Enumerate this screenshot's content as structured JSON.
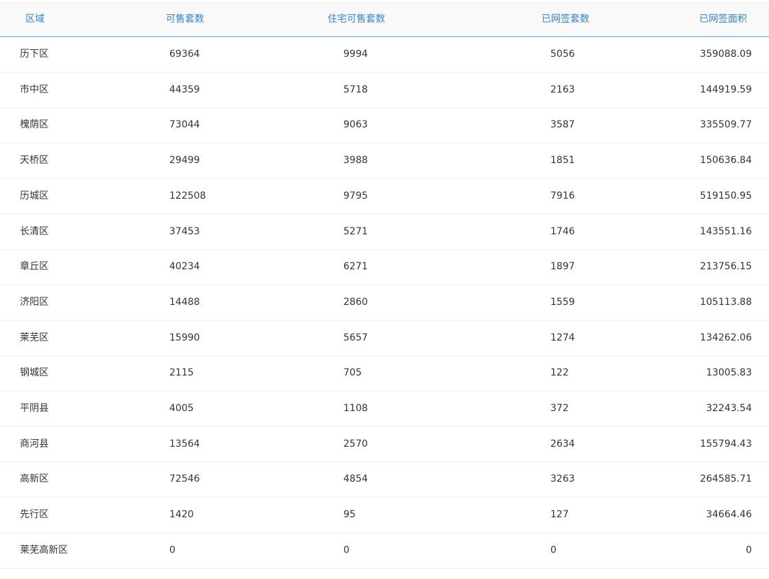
{
  "colors": {
    "header_text": "#2f86d6",
    "header_border": "#5aa6e6",
    "header_bg": "#f9f9fa"
  },
  "table": {
    "columns": [
      "区域",
      "可售套数",
      "住宅可售套数",
      "已网签套数",
      "已网签面积"
    ],
    "rows": [
      [
        "历下区",
        "69364",
        "9994",
        "5056",
        "359088.09"
      ],
      [
        "市中区",
        "44359",
        "5718",
        "2163",
        "144919.59"
      ],
      [
        "槐荫区",
        "73044",
        "9063",
        "3587",
        "335509.77"
      ],
      [
        "天桥区",
        "29499",
        "3988",
        "1851",
        "150636.84"
      ],
      [
        "历城区",
        "122508",
        "9795",
        "7916",
        "519150.95"
      ],
      [
        "长清区",
        "37453",
        "5271",
        "1746",
        "143551.16"
      ],
      [
        "章丘区",
        "40234",
        "6271",
        "1897",
        "213756.15"
      ],
      [
        "济阳区",
        "14488",
        "2860",
        "1559",
        "105113.88"
      ],
      [
        "莱芜区",
        "15990",
        "5657",
        "1274",
        "134262.06"
      ],
      [
        "钢城区",
        "2115",
        "705",
        "122",
        "13005.83"
      ],
      [
        "平阴县",
        "4005",
        "1108",
        "372",
        "32243.54"
      ],
      [
        "商河县",
        "13564",
        "2570",
        "2634",
        "155794.43"
      ],
      [
        "高新区",
        "72546",
        "4854",
        "3263",
        "264585.71"
      ],
      [
        "先行区",
        "1420",
        "95",
        "127",
        "34664.46"
      ],
      [
        "莱芜高新区",
        "0",
        "0",
        "0",
        "0"
      ]
    ]
  }
}
